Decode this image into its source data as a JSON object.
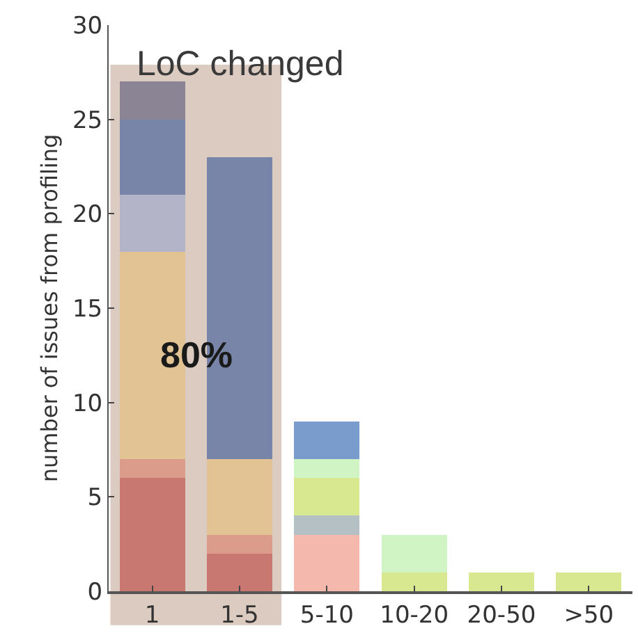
{
  "chart_data": {
    "type": "bar",
    "stacked": true,
    "ylabel": "number of issues from profiling",
    "categories": [
      "1",
      "1-5",
      "5-10",
      "10-20",
      "20-50",
      ">50"
    ],
    "series": [
      {
        "color": "#c87870",
        "values": [
          6,
          2,
          0,
          0,
          0,
          0
        ]
      },
      {
        "color": "#dc9c8c",
        "values": [
          1,
          1,
          0,
          0,
          0,
          0
        ]
      },
      {
        "color": "#f5b8ac",
        "values": [
          0,
          0,
          3,
          0,
          0,
          0
        ]
      },
      {
        "color": "#b4c0c4",
        "values": [
          0,
          0,
          1,
          0,
          0,
          0
        ]
      },
      {
        "color": "#d8e890",
        "values": [
          0,
          0,
          2,
          1,
          1,
          1
        ]
      },
      {
        "color": "#d0f4c4",
        "values": [
          0,
          0,
          1,
          2,
          0,
          0
        ]
      },
      {
        "color": "#e2c494",
        "values": [
          11,
          4,
          0,
          0,
          0,
          0
        ]
      },
      {
        "color": "#b4b4c8",
        "values": [
          3,
          0,
          0,
          0,
          0,
          0
        ]
      },
      {
        "color": "#7885a8",
        "values": [
          4,
          16,
          0,
          0,
          0,
          0
        ]
      },
      {
        "color": "#7a9ccc",
        "values": [
          0,
          0,
          2,
          0,
          0,
          0
        ]
      },
      {
        "color": "#8a8494",
        "values": [
          2,
          0,
          0,
          0,
          0,
          0
        ]
      }
    ],
    "ylim": [
      0,
      30
    ],
    "yticks": [
      0,
      5,
      10,
      15,
      20,
      25,
      30
    ],
    "bands": [
      {
        "axis": "x",
        "from": "1",
        "to": "1-5",
        "label": "LoC changed",
        "color": "#dccbc0"
      }
    ],
    "annotations": [
      "80%"
    ],
    "grid": false
  }
}
